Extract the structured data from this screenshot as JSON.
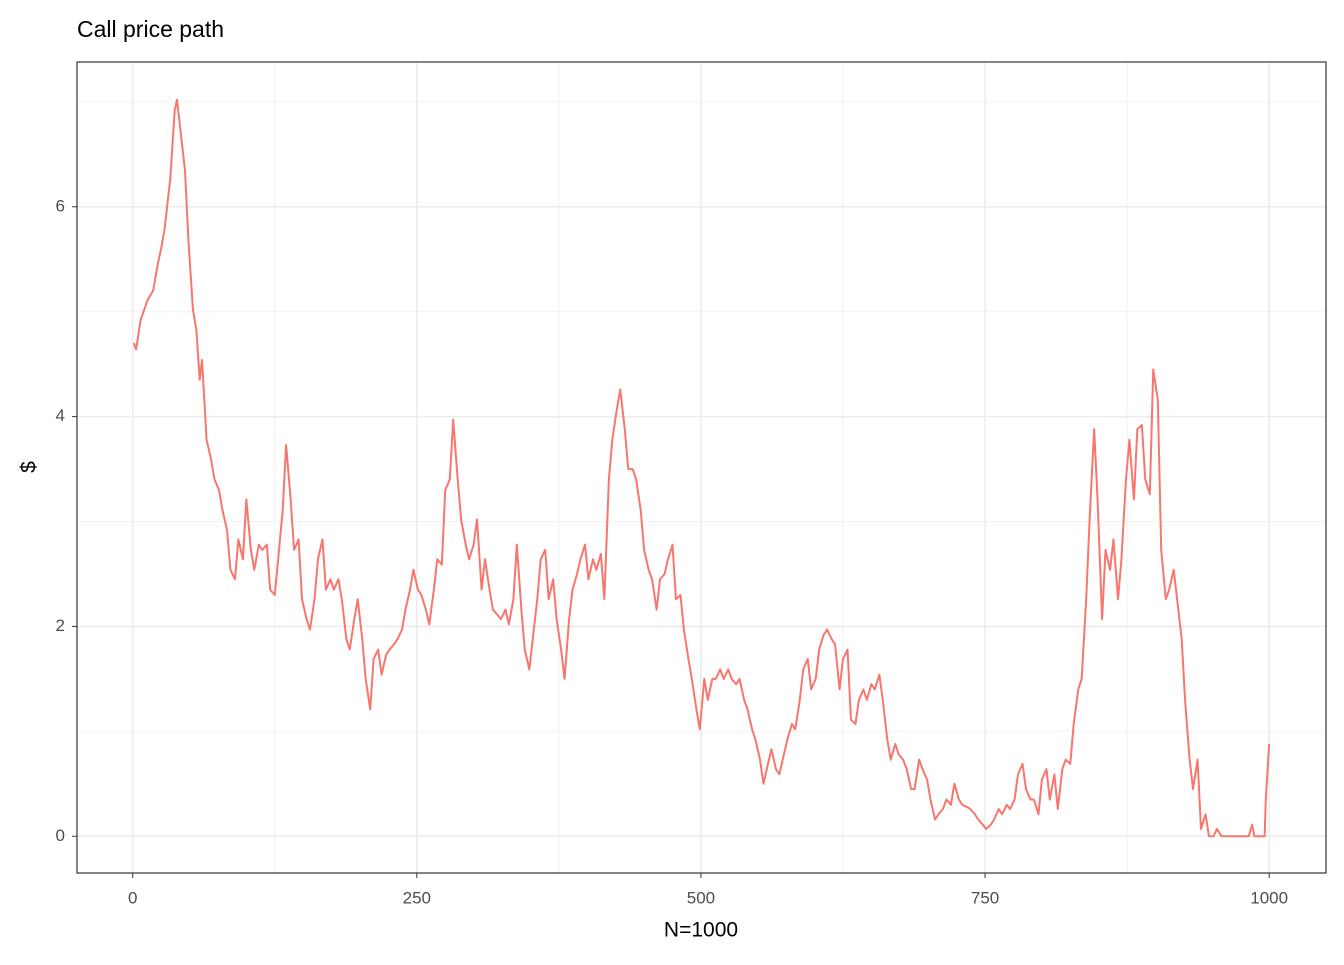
{
  "chart_data": {
    "type": "line",
    "title": "Call price path",
    "x_label": "N=1000",
    "y_label": "$",
    "xlim": [
      -49,
      1050
    ],
    "ylim": [
      -0.35,
      7.38
    ],
    "xticks": [
      0,
      250,
      500,
      750,
      1000
    ],
    "yticks": [
      0,
      2,
      4,
      6
    ],
    "x_minor_ticks": [
      125,
      375,
      625,
      875
    ],
    "y_minor_ticks": [
      1,
      3,
      5,
      7
    ],
    "grid": true,
    "series": [
      {
        "name": "Call price",
        "color": "#F8766D",
        "x": [
          1,
          3,
          7,
          13,
          18,
          22,
          25,
          28,
          31,
          33,
          37,
          39,
          42,
          46,
          49,
          53,
          56,
          59,
          61,
          65,
          69,
          72,
          76,
          79,
          83,
          86,
          90,
          93,
          97,
          100,
          104,
          107,
          111,
          114,
          118,
          121,
          125,
          128,
          132,
          135,
          139,
          142,
          146,
          149,
          153,
          156,
          160,
          163,
          167,
          170,
          174,
          177,
          181,
          184,
          188,
          191,
          195,
          198,
          202,
          205,
          209,
          212,
          216,
          219,
          223,
          226,
          230,
          233,
          237,
          240,
          244,
          247,
          251,
          254,
          258,
          261,
          265,
          268,
          272,
          275,
          279,
          282,
          286,
          289,
          293,
          296,
          300,
          303,
          307,
          310,
          314,
          317,
          321,
          324,
          328,
          331,
          335,
          338,
          342,
          345,
          349,
          352,
          356,
          359,
          363,
          366,
          370,
          373,
          377,
          380,
          384,
          387,
          391,
          394,
          398,
          401,
          405,
          408,
          412,
          415,
          419,
          422,
          426,
          429,
          433,
          436,
          440,
          443,
          447,
          450,
          454,
          457,
          461,
          464,
          468,
          471,
          475,
          478,
          482,
          485,
          489,
          492,
          496,
          499,
          503,
          506,
          510,
          513,
          517,
          520,
          524,
          527,
          531,
          534,
          538,
          541,
          545,
          548,
          552,
          555,
          559,
          562,
          566,
          569,
          573,
          576,
          580,
          583,
          587,
          590,
          594,
          597,
          601,
          604,
          608,
          611,
          615,
          618,
          622,
          625,
          629,
          632,
          636,
          639,
          643,
          646,
          650,
          653,
          657,
          660,
          664,
          667,
          671,
          674,
          678,
          681,
          685,
          688,
          692,
          695,
          699,
          702,
          706,
          709,
          713,
          716,
          720,
          723,
          727,
          730,
          734,
          737,
          741,
          744,
          748,
          751,
          755,
          758,
          762,
          765,
          769,
          772,
          776,
          779,
          783,
          786,
          790,
          793,
          797,
          800,
          804,
          807,
          811,
          814,
          818,
          821,
          825,
          828,
          832,
          835,
          839,
          842,
          846,
          849,
          853,
          856,
          860,
          863,
          867,
          870,
          874,
          877,
          881,
          884,
          888,
          891,
          895,
          898,
          902,
          905,
          909,
          912,
          916,
          919,
          923,
          926,
          930,
          933,
          937,
          940,
          944,
          947,
          951,
          954,
          958,
          982,
          985,
          987,
          996,
          997,
          1000
        ],
        "values": [
          4.7,
          4.64,
          4.92,
          5.11,
          5.2,
          5.45,
          5.6,
          5.78,
          6.07,
          6.26,
          6.92,
          7.02,
          6.73,
          6.35,
          5.69,
          5.02,
          4.83,
          4.35,
          4.54,
          3.78,
          3.59,
          3.4,
          3.3,
          3.11,
          2.92,
          2.54,
          2.45,
          2.83,
          2.64,
          3.21,
          2.73,
          2.54,
          2.78,
          2.73,
          2.78,
          2.35,
          2.3,
          2.64,
          3.11,
          3.73,
          3.21,
          2.73,
          2.83,
          2.26,
          2.07,
          1.97,
          2.26,
          2.64,
          2.83,
          2.35,
          2.45,
          2.35,
          2.45,
          2.26,
          1.88,
          1.78,
          2.07,
          2.26,
          1.88,
          1.5,
          1.21,
          1.69,
          1.78,
          1.54,
          1.73,
          1.78,
          1.83,
          1.88,
          1.97,
          2.16,
          2.35,
          2.54,
          2.35,
          2.3,
          2.16,
          2.02,
          2.35,
          2.64,
          2.59,
          3.3,
          3.4,
          3.97,
          3.4,
          3.02,
          2.78,
          2.64,
          2.78,
          3.02,
          2.35,
          2.64,
          2.35,
          2.16,
          2.11,
          2.07,
          2.16,
          2.02,
          2.26,
          2.78,
          2.16,
          1.78,
          1.59,
          1.88,
          2.26,
          2.64,
          2.73,
          2.26,
          2.45,
          2.07,
          1.78,
          1.5,
          2.07,
          2.35,
          2.5,
          2.64,
          2.78,
          2.45,
          2.64,
          2.54,
          2.69,
          2.26,
          3.4,
          3.78,
          4.07,
          4.26,
          3.88,
          3.5,
          3.5,
          3.4,
          3.11,
          2.73,
          2.54,
          2.45,
          2.16,
          2.45,
          2.5,
          2.64,
          2.78,
          2.26,
          2.3,
          1.97,
          1.69,
          1.5,
          1.21,
          1.02,
          1.5,
          1.3,
          1.5,
          1.5,
          1.59,
          1.5,
          1.59,
          1.5,
          1.45,
          1.5,
          1.3,
          1.21,
          1.02,
          0.92,
          0.73,
          0.5,
          0.69,
          0.83,
          0.64,
          0.59,
          0.78,
          0.92,
          1.07,
          1.02,
          1.3,
          1.59,
          1.69,
          1.4,
          1.5,
          1.78,
          1.92,
          1.97,
          1.88,
          1.83,
          1.4,
          1.69,
          1.78,
          1.11,
          1.07,
          1.3,
          1.4,
          1.3,
          1.45,
          1.4,
          1.54,
          1.3,
          0.92,
          0.73,
          0.88,
          0.78,
          0.73,
          0.64,
          0.45,
          0.45,
          0.73,
          0.64,
          0.54,
          0.35,
          0.16,
          0.21,
          0.26,
          0.35,
          0.3,
          0.5,
          0.35,
          0.3,
          0.28,
          0.26,
          0.21,
          0.16,
          0.11,
          0.07,
          0.11,
          0.16,
          0.26,
          0.21,
          0.3,
          0.26,
          0.35,
          0.59,
          0.69,
          0.45,
          0.35,
          0.35,
          0.21,
          0.54,
          0.64,
          0.35,
          0.59,
          0.26,
          0.64,
          0.73,
          0.69,
          1.07,
          1.4,
          1.5,
          2.26,
          3.02,
          3.88,
          3.21,
          2.07,
          2.73,
          2.54,
          2.83,
          2.26,
          2.64,
          3.4,
          3.78,
          3.21,
          3.88,
          3.92,
          3.4,
          3.26,
          4.45,
          4.16,
          2.73,
          2.26,
          2.35,
          2.54,
          2.26,
          1.88,
          1.3,
          0.73,
          0.45,
          0.73,
          0.07,
          0.21,
          0,
          0,
          0.07,
          0,
          0,
          0.11,
          0,
          0,
          0.35,
          0.88
        ]
      }
    ]
  }
}
